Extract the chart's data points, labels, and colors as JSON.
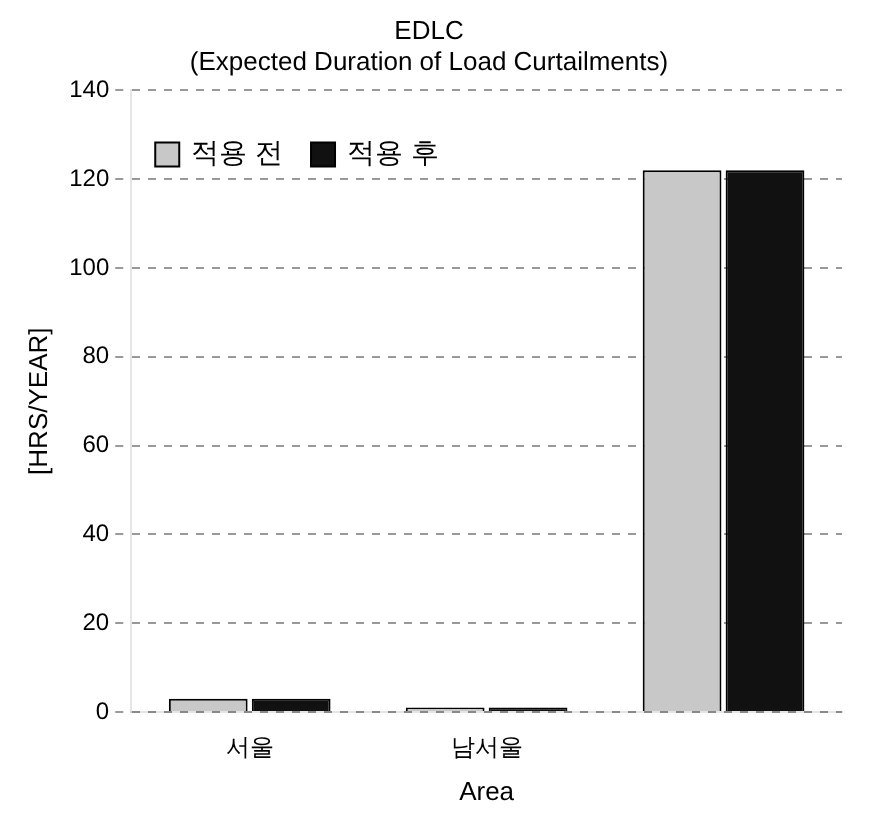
{
  "chart_data": {
    "type": "bar",
    "title": [
      "EDLC",
      "(Expected Duration of Load Curtailments)"
    ],
    "xlabel": "Area",
    "ylabel": "[HRS/YEAR]",
    "categories": [
      "서울",
      "남서울",
      null
    ],
    "series": [
      {
        "name": "적용 전",
        "color": "#c8c8c8",
        "values": [
          3,
          1,
          122
        ]
      },
      {
        "name": "적용 후",
        "color": "#111111",
        "values": [
          3,
          1,
          122
        ]
      }
    ],
    "ylim": [
      0,
      140
    ],
    "yticks": [
      0,
      20,
      40,
      60,
      80,
      100,
      120,
      140
    ],
    "grid": "y",
    "legend": "top left"
  }
}
